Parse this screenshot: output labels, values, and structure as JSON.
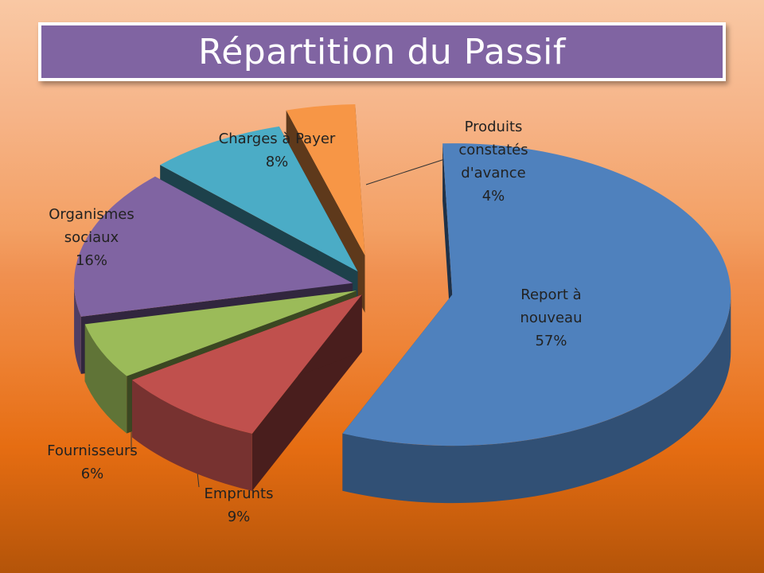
{
  "chart_data": {
    "type": "pie",
    "title": "Répartition du Passif",
    "slices": [
      {
        "label_lines": [
          "Report à",
          "nouveau"
        ],
        "value": 57,
        "pct_label": "57%",
        "color": "#4f81bd"
      },
      {
        "label_lines": [
          "Emprunts"
        ],
        "value": 9,
        "pct_label": "9%",
        "color": "#c0504d"
      },
      {
        "label_lines": [
          "Fournisseurs"
        ],
        "value": 6,
        "pct_label": "6%",
        "color": "#9bbb59"
      },
      {
        "label_lines": [
          "Organismes",
          "sociaux"
        ],
        "value": 16,
        "pct_label": "16%",
        "color": "#8064a2"
      },
      {
        "label_lines": [
          "Charges à Payer"
        ],
        "value": 8,
        "pct_label": "8%",
        "color": "#4bacc6"
      },
      {
        "label_lines": [
          "Produits",
          "constatés",
          "d'avance"
        ],
        "value": 4,
        "pct_label": "4%",
        "color": "#f79646"
      }
    ]
  }
}
